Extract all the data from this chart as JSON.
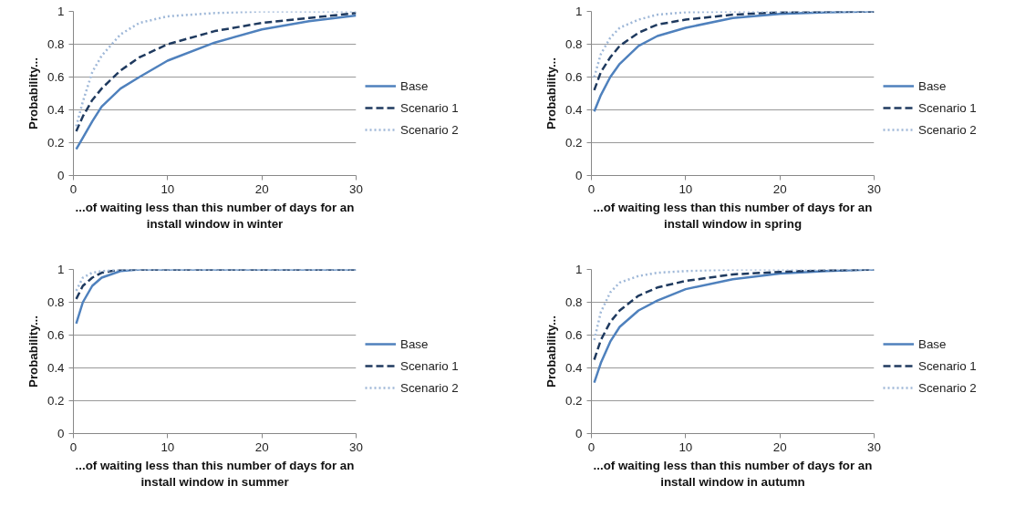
{
  "chart_data": [
    {
      "type": "line",
      "xlabel": "...of waiting less than this number of days for an\ninstall window in winter",
      "ylabel": "Probability...",
      "xlim": [
        0,
        30
      ],
      "ylim": [
        0,
        1
      ],
      "xticks": [
        0,
        10,
        20,
        30
      ],
      "yticks": [
        0,
        0.2,
        0.4,
        0.6,
        0.8,
        1
      ],
      "grid": "y",
      "legend": "right",
      "series": [
        {
          "name": "Base",
          "color": "#4f81bd",
          "line_style": "solid",
          "x": [
            0.3,
            1,
            2,
            3,
            5,
            7,
            10,
            15,
            20,
            25,
            30
          ],
          "values": [
            0.16,
            0.23,
            0.33,
            0.42,
            0.53,
            0.6,
            0.7,
            0.81,
            0.89,
            0.94,
            0.975
          ]
        },
        {
          "name": "Scenario 1",
          "color": "#1f3a5f",
          "line_style": "dashed",
          "x": [
            0.3,
            1,
            2,
            3,
            5,
            7,
            10,
            15,
            20,
            25,
            30
          ],
          "values": [
            0.27,
            0.36,
            0.46,
            0.53,
            0.64,
            0.72,
            0.8,
            0.88,
            0.93,
            0.96,
            0.99
          ]
        },
        {
          "name": "Scenario 2",
          "color": "#9fb8d8",
          "line_style": "dotted",
          "x": [
            0.3,
            1,
            2,
            3,
            5,
            7,
            10,
            15,
            20,
            25,
            30
          ],
          "values": [
            0.3,
            0.45,
            0.63,
            0.73,
            0.86,
            0.93,
            0.97,
            0.99,
            1,
            1,
            1
          ]
        }
      ]
    },
    {
      "type": "line",
      "xlabel": "...of waiting less than this number of days for an\ninstall window in spring",
      "ylabel": "Probability...",
      "xlim": [
        0,
        30
      ],
      "ylim": [
        0,
        1
      ],
      "xticks": [
        0,
        10,
        20,
        30
      ],
      "yticks": [
        0,
        0.2,
        0.4,
        0.6,
        0.8,
        1
      ],
      "grid": "y",
      "legend": "right",
      "series": [
        {
          "name": "Base",
          "color": "#4f81bd",
          "line_style": "solid",
          "x": [
            0.3,
            1,
            2,
            3,
            5,
            7,
            10,
            15,
            20,
            25,
            30
          ],
          "values": [
            0.39,
            0.49,
            0.6,
            0.68,
            0.79,
            0.85,
            0.9,
            0.96,
            0.985,
            0.995,
            1
          ]
        },
        {
          "name": "Scenario 1",
          "color": "#1f3a5f",
          "line_style": "dashed",
          "x": [
            0.3,
            1,
            2,
            3,
            5,
            7,
            10,
            15,
            20,
            25,
            30
          ],
          "values": [
            0.52,
            0.63,
            0.72,
            0.79,
            0.87,
            0.92,
            0.95,
            0.98,
            0.995,
            1,
            1
          ]
        },
        {
          "name": "Scenario 2",
          "color": "#9fb8d8",
          "line_style": "dotted",
          "x": [
            0.3,
            1,
            2,
            3,
            5,
            7,
            10,
            15,
            20,
            25,
            30
          ],
          "values": [
            0.6,
            0.74,
            0.84,
            0.9,
            0.95,
            0.98,
            0.995,
            1,
            1,
            1,
            1
          ]
        }
      ]
    },
    {
      "type": "line",
      "xlabel": "...of waiting less than this number of days for an\ninstall window in summer",
      "ylabel": "Probability...",
      "xlim": [
        0,
        30
      ],
      "ylim": [
        0,
        1
      ],
      "xticks": [
        0,
        10,
        20,
        30
      ],
      "yticks": [
        0,
        0.2,
        0.4,
        0.6,
        0.8,
        1
      ],
      "grid": "y",
      "legend": "right",
      "series": [
        {
          "name": "Base",
          "color": "#4f81bd",
          "line_style": "solid",
          "x": [
            0.3,
            1,
            2,
            3,
            5,
            7,
            10,
            15,
            20,
            25,
            30
          ],
          "values": [
            0.67,
            0.8,
            0.9,
            0.95,
            0.99,
            1,
            1,
            1,
            1,
            1,
            1
          ]
        },
        {
          "name": "Scenario 1",
          "color": "#1f3a5f",
          "line_style": "dashed",
          "x": [
            0.3,
            1,
            2,
            3,
            5,
            7,
            10,
            15,
            20,
            25,
            30
          ],
          "values": [
            0.82,
            0.9,
            0.95,
            0.98,
            1,
            1,
            1,
            1,
            1,
            1,
            1
          ]
        },
        {
          "name": "Scenario 2",
          "color": "#9fb8d8",
          "line_style": "dotted",
          "x": [
            0.3,
            1,
            2,
            3,
            5,
            7,
            10,
            15,
            20,
            25,
            30
          ],
          "values": [
            0.87,
            0.95,
            0.98,
            0.99,
            1,
            1,
            1,
            1,
            1,
            1,
            1
          ]
        }
      ]
    },
    {
      "type": "line",
      "xlabel": "...of waiting less than this number of days for an\ninstall window in autumn",
      "ylabel": "Probability...",
      "xlim": [
        0,
        30
      ],
      "ylim": [
        0,
        1
      ],
      "xticks": [
        0,
        10,
        20,
        30
      ],
      "yticks": [
        0,
        0.2,
        0.4,
        0.6,
        0.8,
        1
      ],
      "grid": "y",
      "legend": "right",
      "series": [
        {
          "name": "Base",
          "color": "#4f81bd",
          "line_style": "solid",
          "x": [
            0.3,
            1,
            2,
            3,
            5,
            7,
            10,
            15,
            20,
            25,
            30
          ],
          "values": [
            0.31,
            0.43,
            0.56,
            0.65,
            0.75,
            0.81,
            0.88,
            0.94,
            0.975,
            0.99,
            1
          ]
        },
        {
          "name": "Scenario 1",
          "color": "#1f3a5f",
          "line_style": "dashed",
          "x": [
            0.3,
            1,
            2,
            3,
            5,
            7,
            10,
            15,
            20,
            25,
            30
          ],
          "values": [
            0.45,
            0.57,
            0.68,
            0.75,
            0.84,
            0.89,
            0.93,
            0.97,
            0.985,
            0.995,
            1
          ]
        },
        {
          "name": "Scenario 2",
          "color": "#9fb8d8",
          "line_style": "dotted",
          "x": [
            0.3,
            1,
            2,
            3,
            5,
            7,
            10,
            15,
            20,
            25,
            30
          ],
          "values": [
            0.57,
            0.74,
            0.86,
            0.92,
            0.96,
            0.98,
            0.99,
            1,
            1,
            1,
            1
          ]
        }
      ]
    }
  ]
}
